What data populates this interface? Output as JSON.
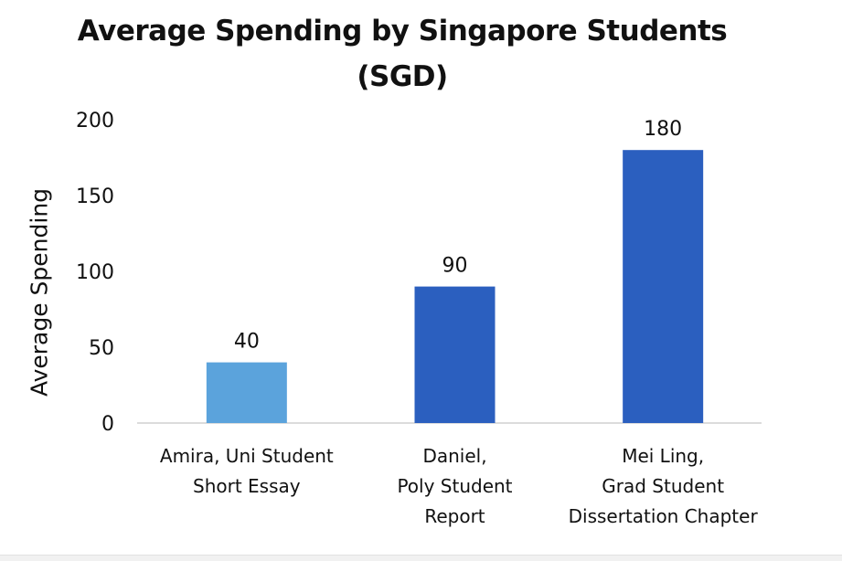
{
  "chart_data": {
    "type": "bar",
    "title_lines": [
      "Average Spending by Singapore Students",
      "(SGD)"
    ],
    "ylabel": "Average Spending",
    "xlabel": "",
    "ylim": [
      0,
      200
    ],
    "yticks": [
      0,
      50,
      100,
      150,
      200
    ],
    "categories": [
      [
        "Amira, Uni Student",
        "Short Essay"
      ],
      [
        "Daniel,",
        "Poly Student",
        "Report"
      ],
      [
        "Mei Ling,",
        "Grad Student",
        "Dissertation Chapter"
      ]
    ],
    "values": [
      40,
      90,
      180
    ],
    "data_labels": [
      "40",
      "90",
      "180"
    ],
    "bar_colors": [
      "#5ba3dc",
      "#2b5fbf",
      "#2b5fbf"
    ],
    "grid": false,
    "legend": "none"
  }
}
